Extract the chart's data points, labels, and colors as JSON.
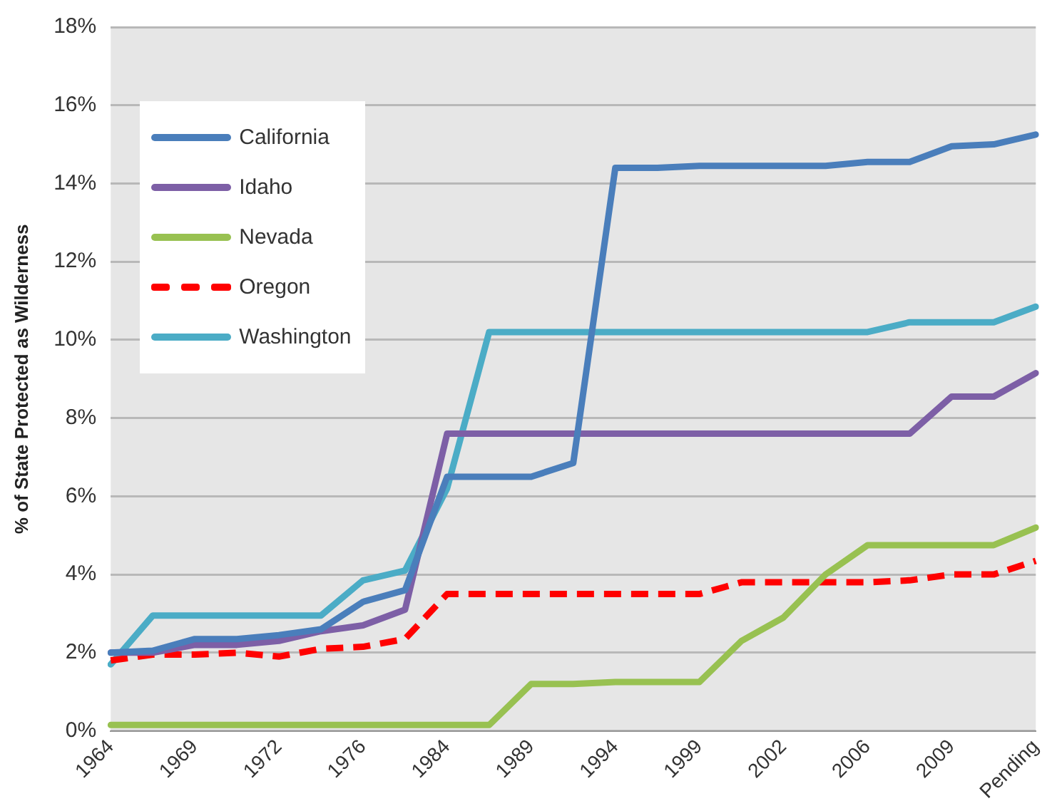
{
  "chart_data": {
    "type": "line",
    "ylabel": "% of State Protected as Wilderness",
    "categories": [
      "1964",
      null,
      "1969",
      null,
      "1972",
      null,
      "1976",
      null,
      "1984",
      null,
      "1989",
      null,
      "1994",
      null,
      "1999",
      null,
      "2002",
      null,
      "2006",
      null,
      "2009",
      null,
      "Pending"
    ],
    "series": [
      {
        "name": "California",
        "color": "#4a7ebb",
        "values": [
          2.0,
          2.05,
          2.35,
          2.35,
          2.45,
          2.6,
          3.3,
          3.6,
          6.5,
          6.5,
          6.5,
          6.85,
          14.4,
          14.4,
          14.45,
          14.45,
          14.45,
          14.45,
          14.55,
          14.55,
          14.95,
          15.0,
          15.25
        ]
      },
      {
        "name": "Idaho",
        "color": "#7d5fa6",
        "values": [
          2.0,
          2.0,
          2.2,
          2.2,
          2.3,
          2.55,
          2.7,
          3.1,
          7.6,
          7.6,
          7.6,
          7.6,
          7.6,
          7.6,
          7.6,
          7.6,
          7.6,
          7.6,
          7.6,
          7.6,
          8.55,
          8.55,
          9.15
        ]
      },
      {
        "name": "Nevada",
        "color": "#98c151",
        "values": [
          0.15,
          0.15,
          0.15,
          0.15,
          0.15,
          0.15,
          0.15,
          0.15,
          0.15,
          0.15,
          1.2,
          1.2,
          1.25,
          1.25,
          1.25,
          2.3,
          2.9,
          4.0,
          4.75,
          4.75,
          4.75,
          4.75,
          5.2
        ]
      },
      {
        "name": "Oregon",
        "color": "#ff0000",
        "line_style": "dashed",
        "values": [
          1.8,
          1.95,
          1.95,
          2.0,
          1.9,
          2.1,
          2.15,
          2.35,
          3.5,
          3.5,
          3.5,
          3.5,
          3.5,
          3.5,
          3.5,
          3.8,
          3.8,
          3.8,
          3.8,
          3.85,
          4.0,
          4.0,
          4.35
        ]
      },
      {
        "name": "Washington",
        "color": "#4bacc6",
        "values": [
          1.7,
          2.95,
          2.95,
          2.95,
          2.95,
          2.95,
          3.85,
          4.1,
          6.2,
          10.2,
          10.2,
          10.2,
          10.2,
          10.2,
          10.2,
          10.2,
          10.2,
          10.2,
          10.2,
          10.45,
          10.45,
          10.45,
          10.85
        ]
      }
    ],
    "ylim": [
      0,
      18
    ],
    "yticks": [
      {
        "value": 0,
        "label": "0%"
      },
      {
        "value": 2,
        "label": "2%"
      },
      {
        "value": 4,
        "label": "4%"
      },
      {
        "value": 6,
        "label": "6%"
      },
      {
        "value": 8,
        "label": "8%"
      },
      {
        "value": 10,
        "label": "10%"
      },
      {
        "value": 12,
        "label": "12%"
      },
      {
        "value": 14,
        "label": "14%"
      },
      {
        "value": 16,
        "label": "16%"
      },
      {
        "value": 18,
        "label": "18%"
      }
    ],
    "grid": "y",
    "legend": "top left",
    "marker": "none",
    "line_style": "solid"
  }
}
